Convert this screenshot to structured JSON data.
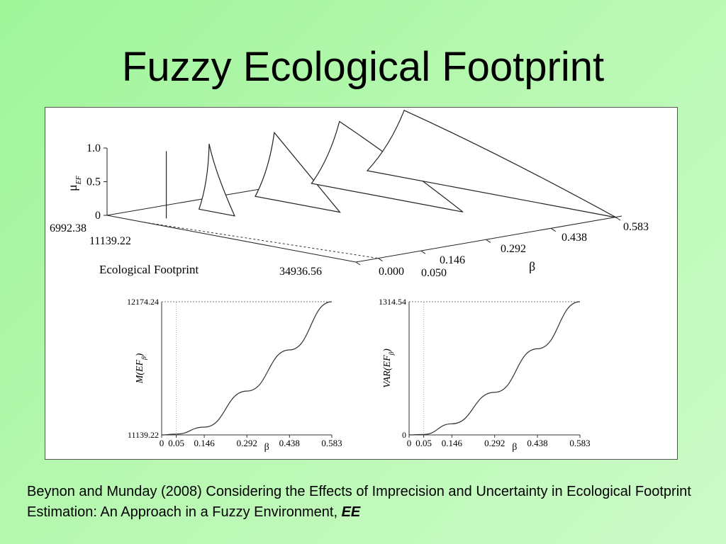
{
  "slide": {
    "title": "Fuzzy Ecological Footprint"
  },
  "citation": {
    "text": "Beynon and Munday (2008) Considering the Effects of Imprecision and Uncertainty in Ecological Footprint Estimation: An Approach in a Fuzzy Environment, ",
    "journal": "EE"
  },
  "chart_data": [
    {
      "type": "line",
      "chart": "3d-membership-functions",
      "ylabel": "μ",
      "ylabel_sub": "EF",
      "xlabel": "Ecological Footprint",
      "zlabel": "β",
      "ylim": [
        0,
        1
      ],
      "y_ticks": [
        "1.0",
        "0.5",
        "0"
      ],
      "x_ticks": [
        "6992.38",
        "11139.22",
        "34936.56"
      ],
      "z_ticks": [
        "0.000",
        "0.050",
        "0.146",
        "0.292",
        "0.438",
        "0.583"
      ],
      "series": [
        {
          "beta": 0.05,
          "left": 11139.22,
          "peak": 11139.22,
          "right": 11139.22
        },
        {
          "beta": 0.146,
          "left": 10000,
          "peak": 11139.22,
          "right": 14000
        },
        {
          "beta": 0.292,
          "left": 9000,
          "peak": 11139.22,
          "right": 18500
        },
        {
          "beta": 0.438,
          "left": 8000,
          "peak": 11139.22,
          "right": 25000
        },
        {
          "beta": 0.583,
          "left": 6992.38,
          "peak": 11139.22,
          "right": 34936.56
        }
      ]
    },
    {
      "type": "line",
      "chart": "expected-value",
      "ylabel": "M(EF",
      "ylabel_sub": "β",
      "ylabel_close": ")",
      "xlabel": "β",
      "ylim": [
        11139.22,
        12174.24
      ],
      "y_ticks": [
        "12174.24",
        "11139.22"
      ],
      "x_ticks": [
        "0",
        "0.05",
        "0.146",
        "0.292",
        "0.438",
        "0.583"
      ],
      "x": [
        0,
        0.05,
        0.146,
        0.292,
        0.438,
        0.583
      ],
      "y": [
        11139.22,
        11146,
        11200,
        11480,
        11800,
        12174.24
      ]
    },
    {
      "type": "line",
      "chart": "variance",
      "ylabel": "VAR(EF",
      "ylabel_sub": "β",
      "ylabel_close": ")",
      "xlabel": "β",
      "ylim": [
        0,
        1314.54
      ],
      "y_ticks": [
        "1314.54",
        "0"
      ],
      "x_ticks": [
        "0",
        "0.05",
        "0.146",
        "0.292",
        "0.438",
        "0.583"
      ],
      "x": [
        0,
        0.05,
        0.146,
        0.292,
        0.438,
        0.583
      ],
      "y": [
        0,
        5,
        110,
        420,
        850,
        1314.54
      ]
    }
  ]
}
